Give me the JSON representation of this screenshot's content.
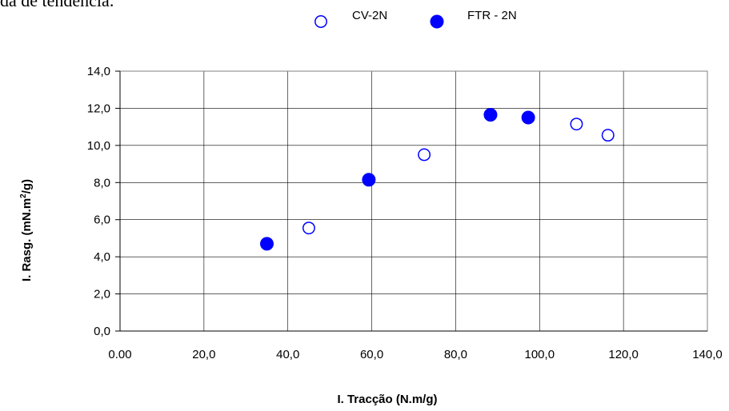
{
  "header_fragment": "da de tendência.",
  "chart_data": {
    "type": "scatter",
    "xlabel": "I. Tracção (N.m/g)",
    "ylabel_main": "I. Rasg. (mN.m",
    "ylabel_sup": "2",
    "ylabel_tail": "/g)",
    "xlim": [
      0,
      140
    ],
    "ylim": [
      0,
      14
    ],
    "x_ticks": [
      "0.00",
      "20,0",
      "40,0",
      "60,0",
      "80,0",
      "100,0",
      "120,0",
      "140,0"
    ],
    "y_ticks": [
      "0,0",
      "2,0",
      "4,0",
      "6,0",
      "8,0",
      "10,0",
      "12,0",
      "14,0"
    ],
    "grid": true,
    "legend_position": "top-center",
    "series": [
      {
        "name": "CV-2N",
        "marker": "open-circle",
        "color": "#0000ff",
        "points": [
          [
            45.0,
            5.55
          ],
          [
            72.5,
            9.5
          ],
          [
            108.8,
            11.15
          ],
          [
            116.3,
            10.55
          ]
        ]
      },
      {
        "name": "FTR - 2N",
        "marker": "filled-circle",
        "color": "#0000ff",
        "points": [
          [
            35.0,
            4.7
          ],
          [
            59.3,
            8.15
          ],
          [
            88.3,
            11.65
          ],
          [
            97.3,
            11.5
          ]
        ]
      }
    ]
  }
}
